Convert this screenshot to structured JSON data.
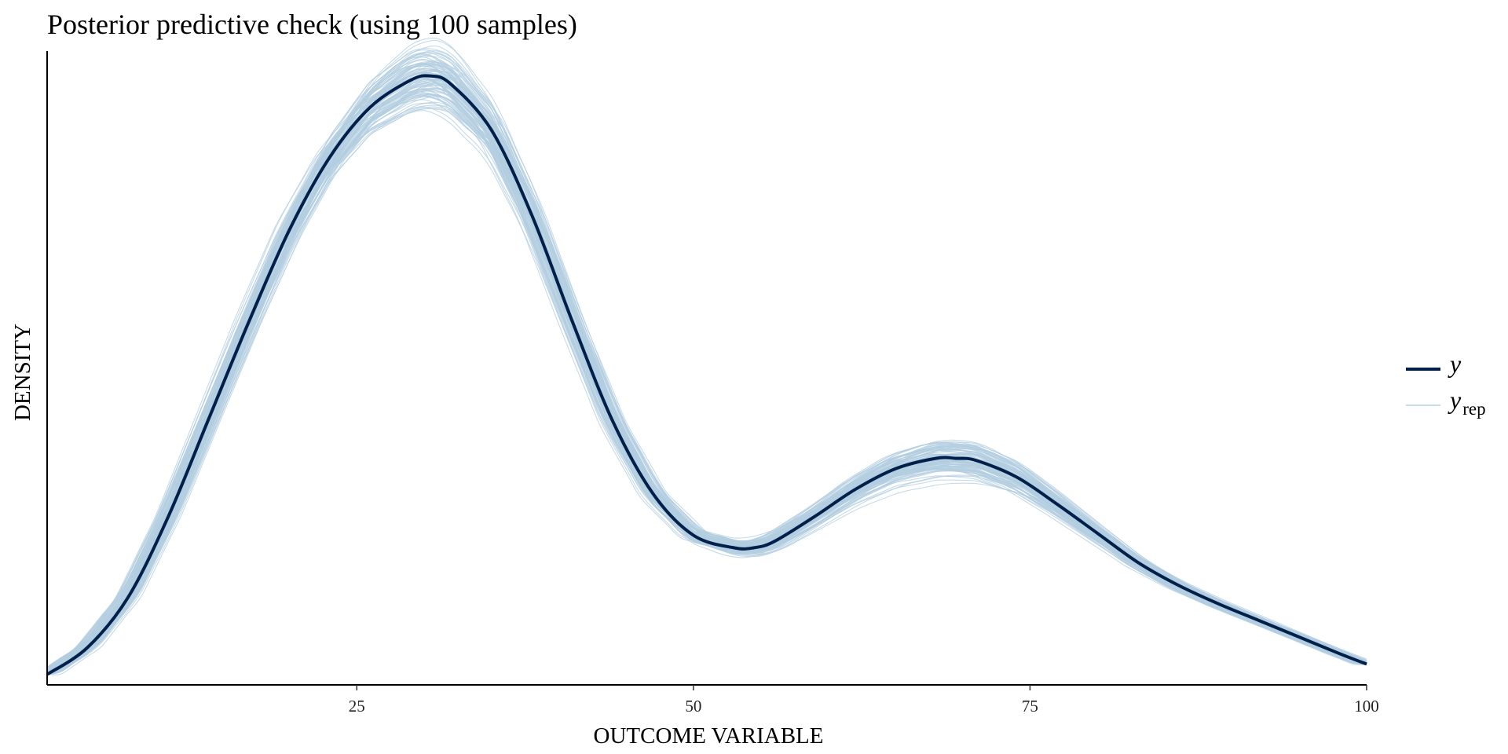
{
  "chart_data": {
    "type": "line",
    "title": "Posterior predictive check (using 100 samples)",
    "xlabel": "OUTCOME VARIABLE",
    "ylabel": "DENSITY",
    "xlim": [
      2,
      100
    ],
    "ylim": [
      0,
      0.0305
    ],
    "x_ticks": [
      25,
      50,
      75,
      100
    ],
    "x_tick_labels": [
      "25",
      "50",
      "75",
      "100"
    ],
    "y_ticks_shown": false,
    "grid": false,
    "legend_position": "right",
    "legend": [
      {
        "key": "y",
        "label": "y",
        "subscript": ""
      },
      {
        "key": "yrep",
        "label": "y",
        "subscript": "rep"
      }
    ],
    "colors": {
      "y": "#011f4b",
      "yrep": "#b3cde0"
    },
    "series": [
      {
        "name": "y",
        "x": [
          2,
          5,
          8,
          11,
          14,
          17,
          20,
          23,
          26,
          29,
          30.5,
          32,
          35,
          38,
          41,
          44,
          47,
          50,
          53,
          54.5,
          56,
          59,
          62,
          65,
          68,
          69.5,
          71,
          74,
          77,
          80,
          83,
          86,
          89,
          92,
          95,
          98,
          100
        ],
        "values": [
          0.0005,
          0.0018,
          0.0042,
          0.0081,
          0.0128,
          0.0175,
          0.0219,
          0.0254,
          0.0278,
          0.0291,
          0.0293,
          0.0289,
          0.0267,
          0.0226,
          0.0175,
          0.0127,
          0.0092,
          0.0072,
          0.0066,
          0.0066,
          0.0069,
          0.0081,
          0.0094,
          0.0104,
          0.0109,
          0.0109,
          0.0108,
          0.01,
          0.0087,
          0.0073,
          0.0059,
          0.0048,
          0.0039,
          0.0031,
          0.0023,
          0.0015,
          0.001
        ]
      }
    ],
    "yrep_count": 100
  }
}
